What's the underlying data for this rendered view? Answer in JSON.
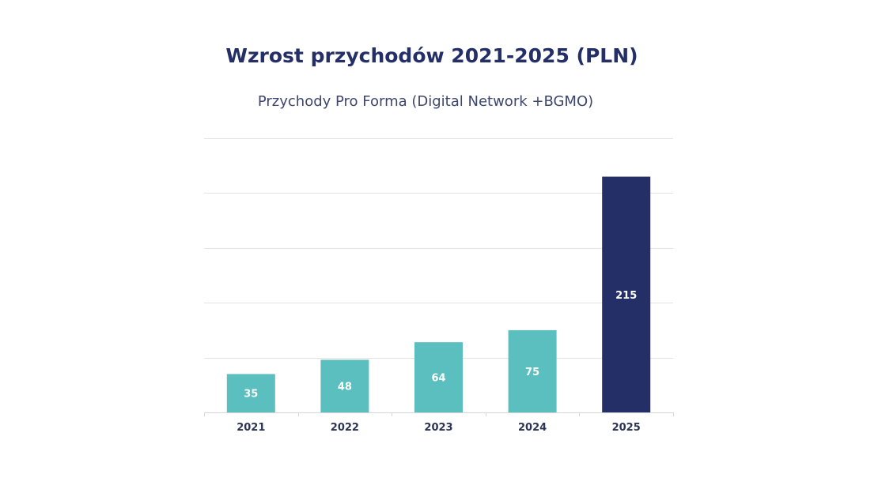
{
  "chart_data": {
    "type": "bar",
    "title": "Wzrost przychodów 2021-2025 (PLN)",
    "subtitle": "Przychody Pro Forma  (Digital Network +BGMO)",
    "xlabel": "",
    "ylabel": "",
    "categories": [
      "2021",
      "2022",
      "2023",
      "2024",
      "2025"
    ],
    "values": [
      35,
      48,
      64,
      75,
      215
    ],
    "data_labels": [
      "35",
      "48",
      "64",
      "75",
      "215"
    ],
    "ylim": [
      0,
      250
    ],
    "grid": true,
    "legend": "none",
    "bar_colors": [
      "#5bbfbf",
      "#5bbfbf",
      "#5bbfbf",
      "#5bbfbf",
      "#232f66"
    ]
  },
  "colors": {
    "title": "#232f66",
    "subtitle": "#3d476e",
    "grid": "#e3e3e3",
    "axis": "#d6d6d6",
    "tick_label": "#2b3355",
    "data_label": "#ffffff"
  }
}
